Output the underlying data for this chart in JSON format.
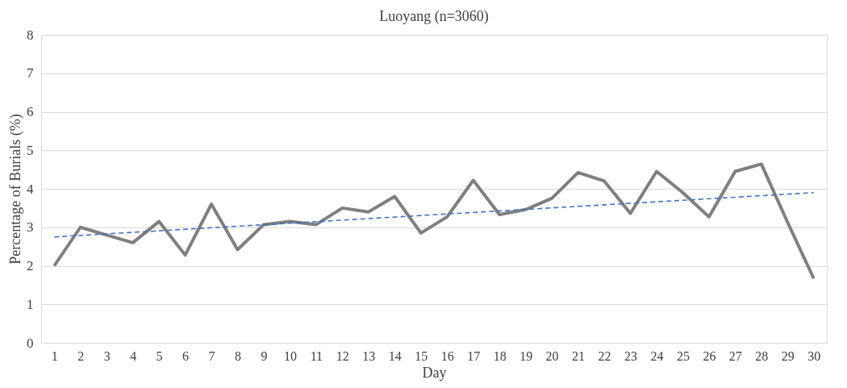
{
  "chart_data": {
    "type": "line",
    "title": "Luoyang (n=3060)",
    "xlabel": "Day",
    "ylabel": "Percentage of Burials (%)",
    "x": [
      1,
      2,
      3,
      4,
      5,
      6,
      7,
      8,
      9,
      10,
      11,
      12,
      13,
      14,
      15,
      16,
      17,
      18,
      19,
      20,
      21,
      22,
      23,
      24,
      25,
      26,
      27,
      28,
      29,
      30
    ],
    "xlim": [
      0.5,
      30.5
    ],
    "xticks": [
      1,
      2,
      3,
      4,
      5,
      6,
      7,
      8,
      9,
      10,
      11,
      12,
      13,
      14,
      15,
      16,
      17,
      18,
      19,
      20,
      21,
      22,
      23,
      24,
      25,
      26,
      27,
      28,
      29,
      30
    ],
    "ylim": [
      0,
      8
    ],
    "yticks": [
      0,
      1,
      2,
      3,
      4,
      5,
      6,
      7,
      8
    ],
    "grid": "y",
    "marker": "none",
    "series": [
      {
        "color": "#7f7f7f",
        "line_style": "solid",
        "values": [
          2.0,
          3.0,
          2.8,
          2.6,
          3.15,
          2.28,
          3.6,
          2.42,
          3.07,
          3.15,
          3.07,
          3.5,
          3.4,
          3.8,
          2.85,
          3.27,
          4.22,
          3.33,
          3.46,
          3.75,
          4.42,
          4.2,
          3.36,
          4.45,
          3.9,
          3.27,
          4.45,
          4.64,
          3.13,
          1.67
        ]
      },
      {
        "type": "line",
        "color": "#4472c4",
        "line_style": "dashed",
        "x": [
          1,
          30
        ],
        "values": [
          2.75,
          3.9
        ]
      }
    ]
  }
}
